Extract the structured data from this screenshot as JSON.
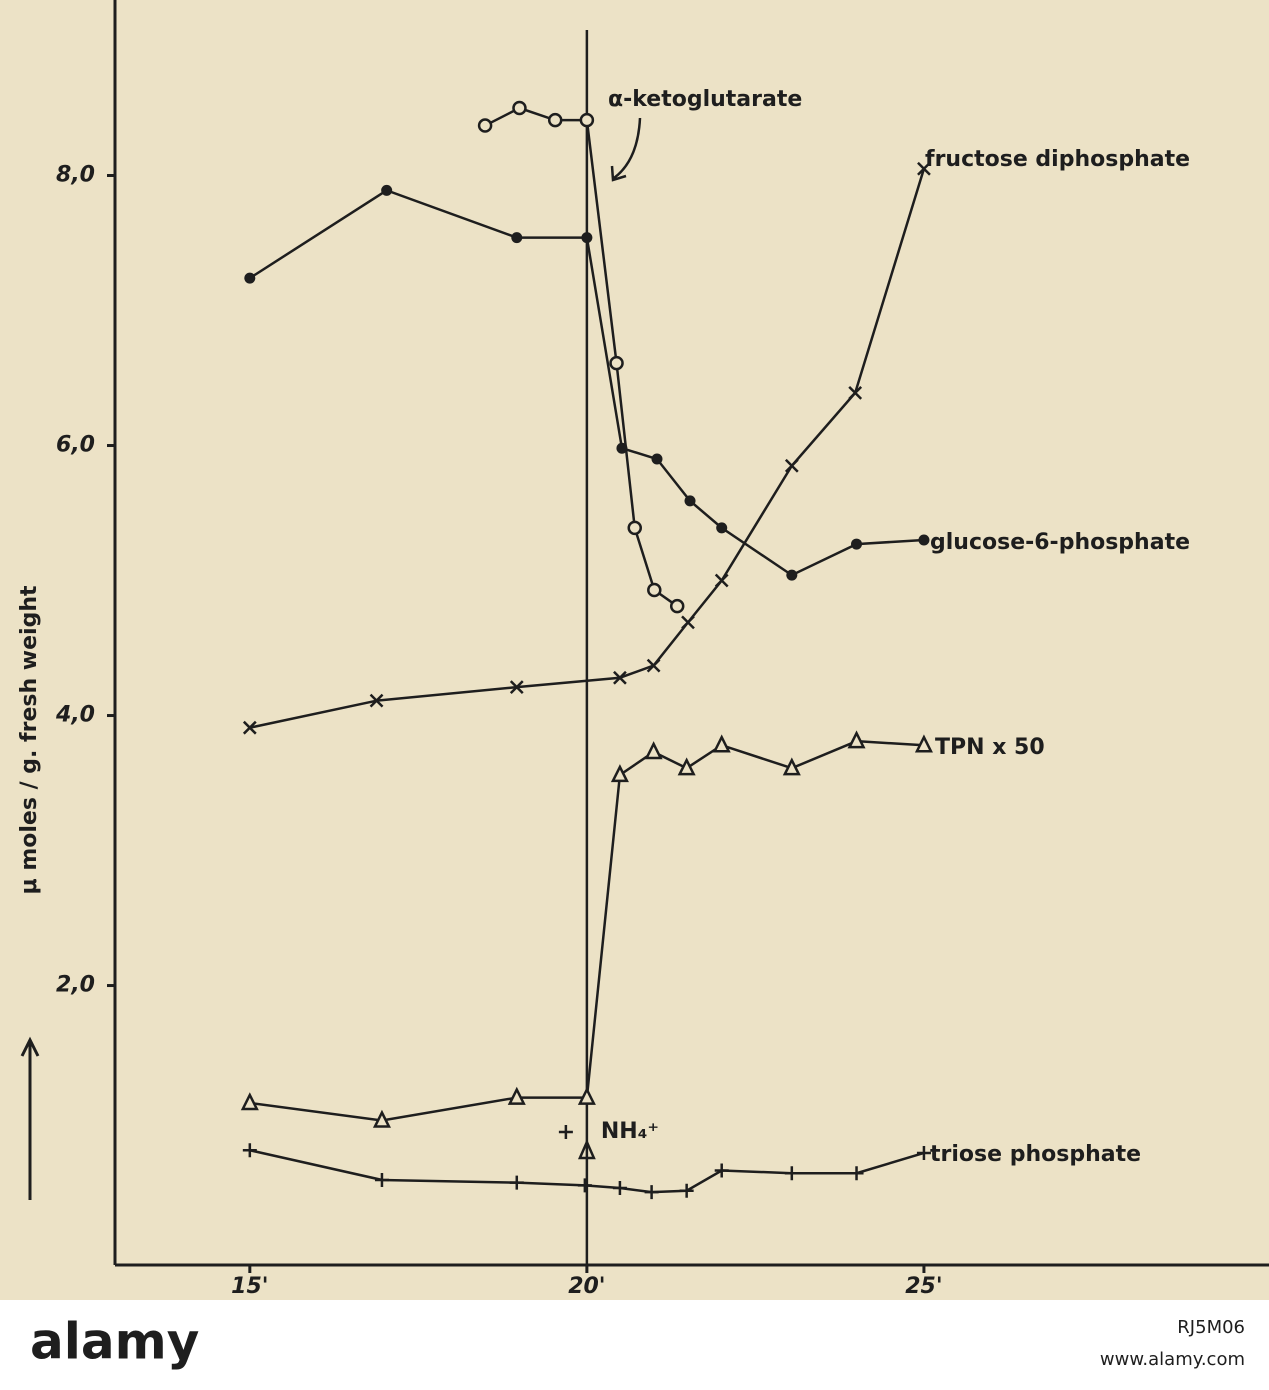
{
  "chart_data": {
    "type": "line",
    "y_label": "μ moles / g. fresh weight",
    "xlim": [
      13,
      30
    ],
    "ylim": [
      -0.07,
      9.3
    ],
    "xticks": [
      {
        "value": 15,
        "label": "15'"
      },
      {
        "value": 20,
        "label": "20'"
      },
      {
        "value": 25,
        "label": "25'"
      }
    ],
    "yticks": [
      {
        "value": 2,
        "label": "2,0"
      },
      {
        "value": 4,
        "label": "4,0"
      },
      {
        "value": 6,
        "label": "6,0"
      },
      {
        "value": 8,
        "label": "8,0"
      }
    ],
    "color": "#1e1e1e",
    "series": [
      {
        "name": "α-ketoglutarate",
        "marker": "circle",
        "x": [
          18.49,
          19.0,
          19.53,
          20.0,
          20.44,
          20.71,
          21.0,
          21.34
        ],
        "values": [
          8.37,
          8.5,
          8.41,
          8.41,
          6.61,
          5.39,
          4.93,
          4.81
        ]
      },
      {
        "name": "fructose diphosphate",
        "marker": "x",
        "x": [
          15,
          16.88,
          18.96,
          20.49,
          20.99,
          21.5,
          22.0,
          23.04,
          23.98,
          25
        ],
        "values": [
          3.91,
          4.11,
          4.21,
          4.28,
          4.37,
          4.69,
          5.0,
          5.85,
          6.39,
          8.05
        ]
      },
      {
        "name": "glucose-6-phosphate",
        "marker": "dot",
        "x": [
          15,
          17.03,
          18.96,
          20.0,
          20.52,
          21.04,
          21.53,
          22.0,
          23.04,
          24.0,
          25
        ],
        "values": [
          7.24,
          7.89,
          7.54,
          7.54,
          5.98,
          5.9,
          5.59,
          5.39,
          5.04,
          5.27,
          5.3
        ]
      },
      {
        "name": "TPN x 50",
        "marker": "triangle",
        "x": [
          15,
          16.96,
          18.96,
          20.0,
          20.49,
          20.99,
          21.48,
          22.0,
          23.04,
          24.0,
          25
        ],
        "values": [
          1.13,
          1.0,
          1.17,
          1.17,
          3.56,
          3.73,
          3.61,
          3.78,
          3.61,
          3.81,
          3.78
        ]
      },
      {
        "name": "triose phosphate",
        "marker": "plus",
        "x": [
          15,
          16.96,
          18.96,
          19.97,
          20.49,
          20.96,
          21.48,
          22.0,
          23.04,
          24.0,
          25
        ],
        "values": [
          0.78,
          0.56,
          0.54,
          0.52,
          0.5,
          0.47,
          0.48,
          0.63,
          0.61,
          0.61,
          0.76
        ]
      }
    ],
    "annotations": [
      {
        "text": "NH₄⁺",
        "x": 20
      }
    ]
  },
  "watermark": {
    "brand": "alamy",
    "image_id": "RJ5M06",
    "url": "www.alamy.com"
  }
}
